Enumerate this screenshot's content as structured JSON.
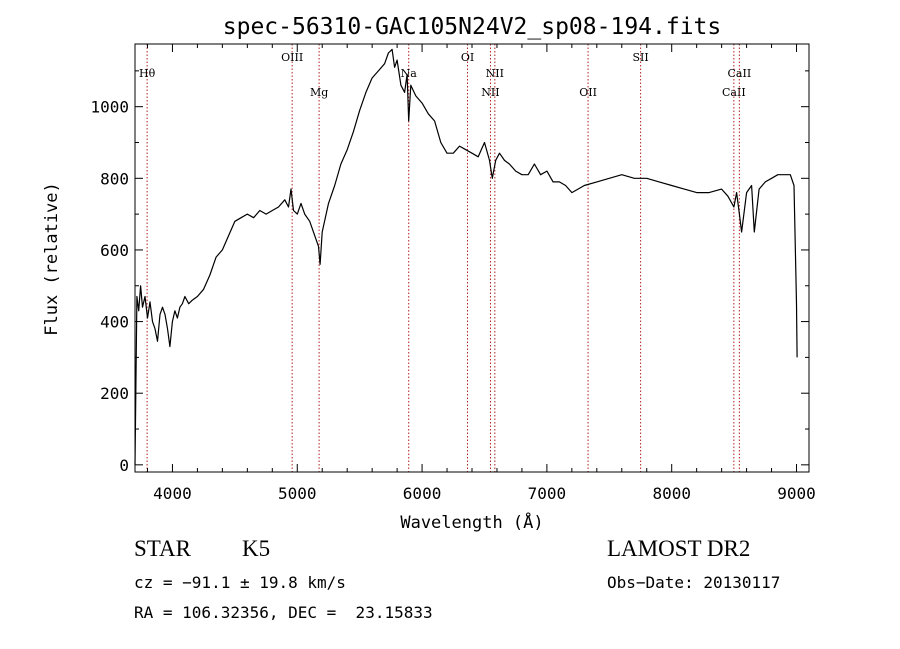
{
  "chart_data": {
    "type": "line",
    "title": "spec-56310-GAC105N24V2_sp08-194.fits",
    "xlabel": "Wavelength (Å)",
    "ylabel": "Flux (relative)",
    "xlim": [
      3700,
      9100
    ],
    "ylim": [
      -20,
      1175
    ],
    "x_ticks": [
      4000,
      5000,
      6000,
      7000,
      8000,
      9000
    ],
    "y_ticks": [
      0,
      200,
      400,
      600,
      800,
      1000
    ],
    "grid": false,
    "line_color": "#000000",
    "marker_color": "#b22222",
    "series": [
      {
        "x": [
          3700,
          3715,
          3730,
          3745,
          3760,
          3780,
          3800,
          3820,
          3840,
          3860,
          3880,
          3900,
          3920,
          3940,
          3960,
          3980,
          4000,
          4020,
          4040,
          4060,
          4080,
          4100,
          4130,
          4160,
          4200,
          4250,
          4300,
          4350,
          4400,
          4450,
          4500,
          4550,
          4600,
          4650,
          4700,
          4750,
          4800,
          4850,
          4900,
          4930,
          4950,
          4970,
          5000,
          5030,
          5060,
          5100,
          5140,
          5170,
          5183,
          5200,
          5250,
          5300,
          5350,
          5400,
          5450,
          5500,
          5550,
          5600,
          5650,
          5700,
          5730,
          5760,
          5780,
          5800,
          5830,
          5860,
          5880,
          5893,
          5910,
          5950,
          6000,
          6050,
          6100,
          6150,
          6200,
          6250,
          6300,
          6350,
          6400,
          6450,
          6500,
          6540,
          6563,
          6590,
          6620,
          6660,
          6700,
          6750,
          6800,
          6850,
          6900,
          6950,
          7000,
          7050,
          7100,
          7150,
          7200,
          7300,
          7400,
          7500,
          7600,
          7700,
          7800,
          7900,
          8000,
          8100,
          8200,
          8300,
          8400,
          8450,
          8498,
          8520,
          8542,
          8560,
          8600,
          8640,
          8662,
          8700,
          8750,
          8800,
          8850,
          8900,
          8950,
          8980,
          9000,
          9005
        ],
        "y": [
          0,
          470,
          430,
          500,
          440,
          470,
          410,
          455,
          400,
          380,
          345,
          420,
          440,
          420,
          380,
          330,
          400,
          430,
          410,
          440,
          450,
          470,
          450,
          460,
          470,
          490,
          530,
          580,
          600,
          640,
          680,
          690,
          700,
          690,
          710,
          700,
          710,
          720,
          740,
          720,
          770,
          710,
          700,
          730,
          700,
          680,
          640,
          610,
          560,
          650,
          730,
          780,
          840,
          880,
          930,
          990,
          1040,
          1080,
          1100,
          1120,
          1150,
          1160,
          1110,
          1130,
          1060,
          1040,
          1090,
          960,
          1060,
          1030,
          1010,
          980,
          960,
          900,
          870,
          870,
          890,
          880,
          870,
          860,
          900,
          850,
          800,
          850,
          870,
          850,
          840,
          820,
          810,
          810,
          840,
          810,
          820,
          790,
          790,
          780,
          760,
          780,
          790,
          800,
          810,
          800,
          800,
          790,
          780,
          770,
          760,
          760,
          770,
          750,
          720,
          760,
          700,
          650,
          760,
          780,
          650,
          770,
          790,
          800,
          810,
          810,
          810,
          780,
          450,
          300
        ]
      }
    ],
    "markers": [
      {
        "label": "Hθ",
        "x": 3797,
        "row": 1
      },
      {
        "label": "OIII",
        "x": 4959,
        "row": 0
      },
      {
        "label": "Mg",
        "x": 5175,
        "row": 2
      },
      {
        "label": "Na",
        "x": 5893,
        "row": 1
      },
      {
        "label": "OI",
        "x": 6364,
        "row": 0
      },
      {
        "label": "NII",
        "x": 6548,
        "row": 2
      },
      {
        "label": "NII",
        "x": 6583,
        "row": 1
      },
      {
        "label": "OII",
        "x": 7330,
        "row": 2
      },
      {
        "label": "SII",
        "x": 7751,
        "row": 0
      },
      {
        "label": "CaII",
        "x": 8498,
        "row": 2
      },
      {
        "label": "CaII",
        "x": 8542,
        "row": 1
      }
    ]
  },
  "info": {
    "object_type": "STAR",
    "subclass": "K5",
    "survey": "LAMOST DR2",
    "cz": "cz = −91.1 ± 19.8 km/s",
    "obs_date": "Obs−Date: 20130117",
    "radec": "RA = 106.32356, DEC =  23.15833"
  }
}
